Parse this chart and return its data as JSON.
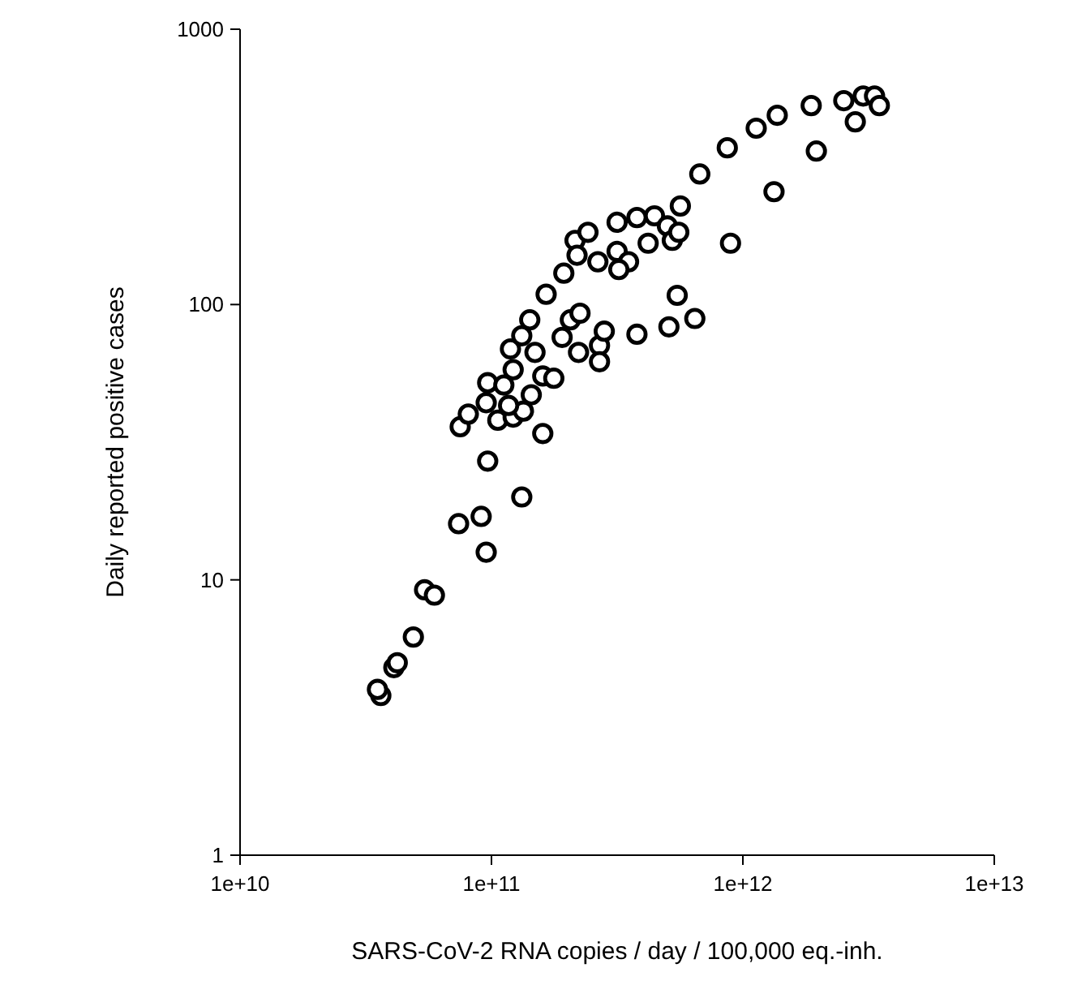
{
  "chart_data": {
    "type": "scatter",
    "xlabel": "SARS-CoV-2 RNA copies / day / 100,000 eq.-inh.",
    "ylabel": "Daily reported positive cases",
    "log": "xy",
    "grid": false,
    "marker": "circle",
    "xlim": [
      10000000000.0,
      10000000000000.0
    ],
    "ylim": [
      1,
      1000
    ],
    "xticks": [
      {
        "value": 10000000000.0,
        "label": "1e+10"
      },
      {
        "value": 100000000000.0,
        "label": "1e+11"
      },
      {
        "value": 1000000000000.0,
        "label": "1e+12"
      },
      {
        "value": 10000000000000.0,
        "label": "1e+13"
      }
    ],
    "yticks": [
      1,
      10,
      100,
      1000
    ],
    "series": [
      {
        "color": "#000000",
        "x": [
          36300000000.0,
          35200000000.0,
          40900000000.0,
          42200000000.0,
          48900000000.0,
          54200000000.0,
          59300000000.0,
          95300000000.0,
          74000000000.0,
          91000000000.0,
          132000000000.0,
          96600000000.0,
          160000000000.0,
          75100000000.0,
          80900000000.0,
          106000000000.0,
          122000000000.0,
          134000000000.0,
          117000000000.0,
          95300000000.0,
          96600000000.0,
          112000000000.0,
          144000000000.0,
          122000000000.0,
          160000000000.0,
          177000000000.0,
          119000000000.0,
          132000000000.0,
          149000000000.0,
          191000000000.0,
          142000000000.0,
          206000000000.0,
          222000000000.0,
          225000000000.0,
          165000000000.0,
          194000000000.0,
          215000000000.0,
          219000000000.0,
          242000000000.0,
          265000000000.0,
          269000000000.0,
          269000000000.0,
          281000000000.0,
          316000000000.0,
          316000000000.0,
          351000000000.0,
          321000000000.0,
          379000000000.0,
          379000000000.0,
          445000000000.0,
          420000000000.0,
          501000000000.0,
          524000000000.0,
          556000000000.0,
          564000000000.0,
          548000000000.0,
          508000000000.0,
          644000000000.0,
          893000000000.0,
          674000000000.0,
          867000000000.0,
          1130000000000.0,
          1370000000000.0,
          1330000000000.0,
          1870000000000.0,
          1960000000000.0,
          2520000000000.0,
          2800000000000.0,
          3010000000000.0,
          3340000000000.0,
          3490000000000.0
        ],
        "values": [
          3.8,
          4.0,
          4.8,
          5.0,
          6.2,
          9.2,
          8.8,
          12.6,
          16,
          17,
          20,
          27,
          34,
          36,
          40,
          38,
          39,
          41,
          43,
          44,
          52,
          51,
          47,
          58,
          55,
          54,
          69,
          77,
          67,
          76,
          88,
          88,
          67,
          93,
          109,
          130,
          171,
          151,
          183,
          143,
          71,
          62,
          80,
          199,
          156,
          143,
          134,
          207,
          78,
          210,
          167,
          193,
          171,
          183,
          228,
          108,
          83,
          89,
          167,
          298,
          371,
          437,
          487,
          257,
          528,
          361,
          550,
          461,
          572,
          572,
          528
        ]
      }
    ]
  }
}
